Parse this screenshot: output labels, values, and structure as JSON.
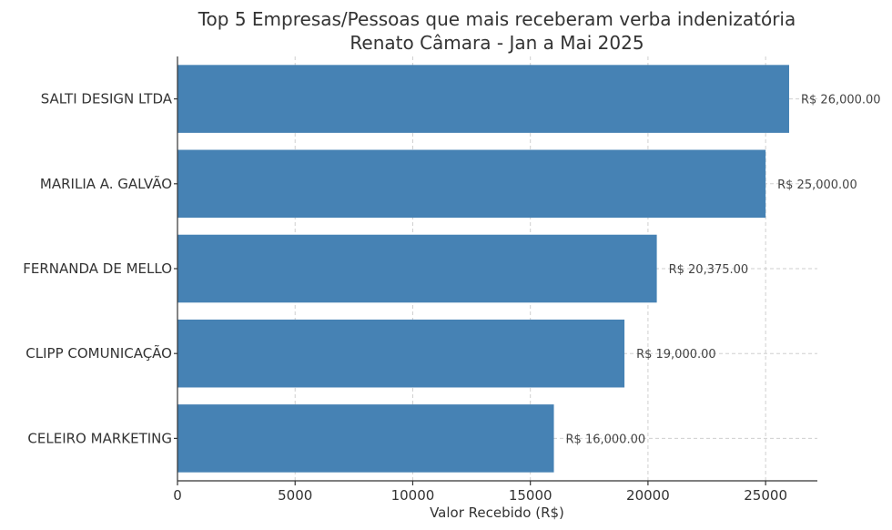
{
  "chart_data": {
    "type": "bar",
    "orientation": "horizontal",
    "title": "Top 5 Empresas/Pessoas que mais receberam verba indenizatória",
    "subtitle": "Renato Câmara - Jan a Mai 2025",
    "xlabel": "Valor Recebido (R$)",
    "ylabel": "",
    "xlim": [
      0,
      27200
    ],
    "xticks": [
      0,
      5000,
      10000,
      15000,
      20000,
      25000
    ],
    "grid": true,
    "bar_color": "#4682b4",
    "categories": [
      "SALTI DESIGN LTDA",
      "MARILIA A. GALVÃO",
      "FERNANDA DE MELLO",
      "CLIPP COMUNICAÇÃO",
      "CELEIRO MARKETING"
    ],
    "values": [
      26000,
      25000,
      20375,
      19000,
      16000
    ],
    "value_labels": [
      "R$ 26,000.00",
      "R$ 25,000.00",
      "R$ 20,375.00",
      "R$ 19,000.00",
      "R$ 16,000.00"
    ]
  }
}
